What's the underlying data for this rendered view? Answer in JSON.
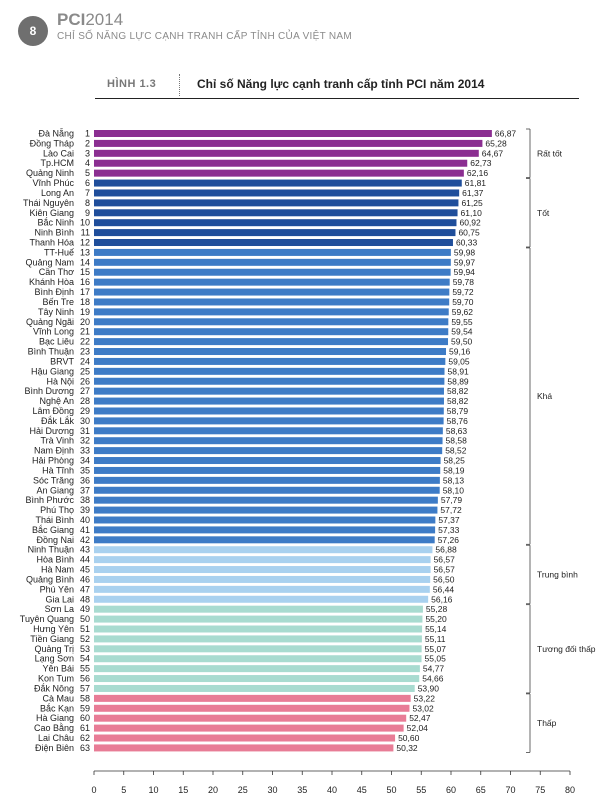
{
  "header": {
    "page_number": "8",
    "brand": "PCI",
    "brand_year": "2014",
    "subtitle": "CHỈ SỐ NĂNG LỰC CẠNH TRANH CẤP TỈNH CỦA VIỆT NAM"
  },
  "figure": {
    "label": "HÌNH 1.3",
    "title": "Chỉ số Năng lực cạnh tranh cấp tỉnh PCI năm 2014"
  },
  "chart_data": {
    "type": "bar",
    "orientation": "horizontal",
    "title": "Chỉ số Năng lực cạnh tranh cấp tỉnh PCI năm 2014",
    "xlim": [
      0,
      80
    ],
    "x_ticks": [
      0,
      5,
      10,
      15,
      20,
      25,
      30,
      35,
      40,
      45,
      50,
      55,
      60,
      65,
      70,
      75,
      80
    ],
    "grid": false,
    "categories": [
      "Đà Nẵng",
      "Đồng Tháp",
      "Lào Cai",
      "Tp.HCM",
      "Quảng Ninh",
      "Vĩnh Phúc",
      "Long An",
      "Thái Nguyên",
      "Kiên Giang",
      "Bắc Ninh",
      "Ninh Bình",
      "Thanh Hóa",
      "TT-Huế",
      "Quảng Nam",
      "Cần Thơ",
      "Khánh Hòa",
      "Bình Định",
      "Bến Tre",
      "Tây Ninh",
      "Quảng Ngãi",
      "Vĩnh Long",
      "Bạc Liêu",
      "Bình Thuận",
      "BRVT",
      "Hậu Giang",
      "Hà Nội",
      "Bình Dương",
      "Nghệ An",
      "Lâm Đồng",
      "Đắk Lắk",
      "Hải Dương",
      "Trà Vinh",
      "Nam Định",
      "Hải Phòng",
      "Hà Tĩnh",
      "Sóc Trăng",
      "An Giang",
      "Bình Phước",
      "Phú Thọ",
      "Thái Bình",
      "Bắc Giang",
      "Đồng Nai",
      "Ninh Thuận",
      "Hòa Bình",
      "Hà Nam",
      "Quảng Bình",
      "Phú Yên",
      "Gia Lai",
      "Sơn La",
      "Tuyên Quang",
      "Hưng Yên",
      "Tiền Giang",
      "Quảng Trị",
      "Lạng Sơn",
      "Yên Bái",
      "Kon Tum",
      "Đắk Nông",
      "Cà Mau",
      "Bắc Kạn",
      "Hà Giang",
      "Cao Bằng",
      "Lai Châu",
      "Điện Biên"
    ],
    "ranks": [
      1,
      2,
      3,
      4,
      5,
      6,
      7,
      8,
      9,
      10,
      11,
      12,
      13,
      14,
      15,
      16,
      17,
      18,
      19,
      20,
      21,
      22,
      23,
      24,
      25,
      26,
      27,
      28,
      29,
      30,
      31,
      32,
      33,
      34,
      35,
      36,
      37,
      38,
      39,
      40,
      41,
      42,
      43,
      44,
      45,
      46,
      47,
      48,
      49,
      50,
      51,
      52,
      53,
      54,
      55,
      56,
      57,
      58,
      59,
      60,
      61,
      62,
      63
    ],
    "values": [
      66.87,
      65.28,
      64.67,
      62.73,
      62.16,
      61.81,
      61.37,
      61.25,
      61.1,
      60.92,
      60.75,
      60.33,
      59.98,
      59.97,
      59.94,
      59.78,
      59.72,
      59.7,
      59.62,
      59.55,
      59.54,
      59.5,
      59.16,
      59.05,
      58.91,
      58.89,
      58.82,
      58.82,
      58.79,
      58.76,
      58.63,
      58.58,
      58.52,
      58.25,
      58.19,
      58.13,
      58.1,
      57.79,
      57.72,
      57.37,
      57.33,
      57.26,
      56.88,
      56.57,
      56.57,
      56.5,
      56.44,
      56.16,
      55.28,
      55.2,
      55.14,
      55.11,
      55.07,
      55.05,
      54.77,
      54.66,
      53.9,
      53.22,
      53.02,
      52.47,
      52.04,
      50.6,
      50.32
    ],
    "value_labels": [
      "66,87",
      "65,28",
      "64,67",
      "62,73",
      "62,16",
      "61,81",
      "61,37",
      "61,25",
      "61,10",
      "60,92",
      "60,75",
      "60,33",
      "59,98",
      "59,97",
      "59,94",
      "59,78",
      "59,72",
      "59,70",
      "59,62",
      "59,55",
      "59,54",
      "59,50",
      "59,16",
      "59,05",
      "58,91",
      "58,89",
      "58,82",
      "58,82",
      "58,79",
      "58,76",
      "58,63",
      "58,58",
      "58,52",
      "58,25",
      "58,19",
      "58,13",
      "58,10",
      "57,79",
      "57,72",
      "57,37",
      "57,33",
      "57,26",
      "56,88",
      "56,57",
      "56,57",
      "56,50",
      "56,44",
      "56,16",
      "55,28",
      "55,20",
      "55,14",
      "55,11",
      "55,07",
      "55,05",
      "54,77",
      "54,66",
      "53,90",
      "53,22",
      "53,02",
      "52,47",
      "52,04",
      "50,60",
      "50,32"
    ],
    "groups": [
      {
        "name": "Rất tốt",
        "count": 5,
        "color": "#8b2e91"
      },
      {
        "name": "Tốt",
        "count": 7,
        "color": "#1f4e9b"
      },
      {
        "name": "Khá",
        "count": 30,
        "color": "#3d7bc6"
      },
      {
        "name": "Trung bình",
        "count": 6,
        "color": "#a9d1ef"
      },
      {
        "name": "Tương đối thấp",
        "count": 9,
        "color": "#a8dbd0"
      },
      {
        "name": "Thấp",
        "count": 6,
        "color": "#e87c96"
      }
    ]
  }
}
